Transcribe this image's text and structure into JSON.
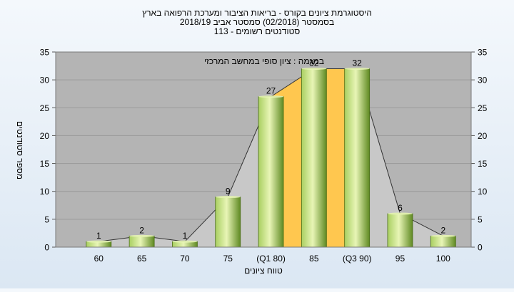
{
  "chart_data": {
    "type": "bar",
    "title_lines": [
      "היסטוגרמת ציונים בקורס - בריאות הציבור ומערכת הרפואה בארץ",
      "בסמסטר  (02/2018)  סמסטר אביב 2018/19",
      "סטודנטים רשומים - 113"
    ],
    "annotation": "במגמה : ציון סופי במחשב המרכזי",
    "xlabel": "טווח ציונים",
    "ylabel": "מספר סטודנטים",
    "categories": [
      "60",
      "65",
      "70",
      "75",
      "(Q1 80)",
      "85",
      "(Q3 90)",
      "95",
      "100"
    ],
    "values": [
      1,
      2,
      1,
      9,
      27,
      32,
      32,
      6,
      2
    ],
    "value_labels": [
      "1",
      "2",
      "1",
      "9",
      "27",
      "32",
      "32",
      "6",
      "2"
    ],
    "ylim": [
      0,
      35
    ],
    "yticks": [
      0,
      5,
      10,
      15,
      20,
      25,
      30,
      35
    ],
    "ytick_labels": [
      "0",
      "5",
      "10",
      "15",
      "20",
      "25",
      "30",
      "35"
    ],
    "quartile_band": {
      "from_category": "(Q1 80)",
      "to_category": "(Q3 90)"
    },
    "grid": true,
    "colors": {
      "plot_bg": "#b4b4b4",
      "bar_light": "#e8f5b6",
      "bar_mid": "#a9cf61",
      "bar_dark": "#5f8a22",
      "band_fill": "#ffc74f",
      "trend_fill": "#c8c8c8",
      "trend_line": "#333333"
    }
  }
}
